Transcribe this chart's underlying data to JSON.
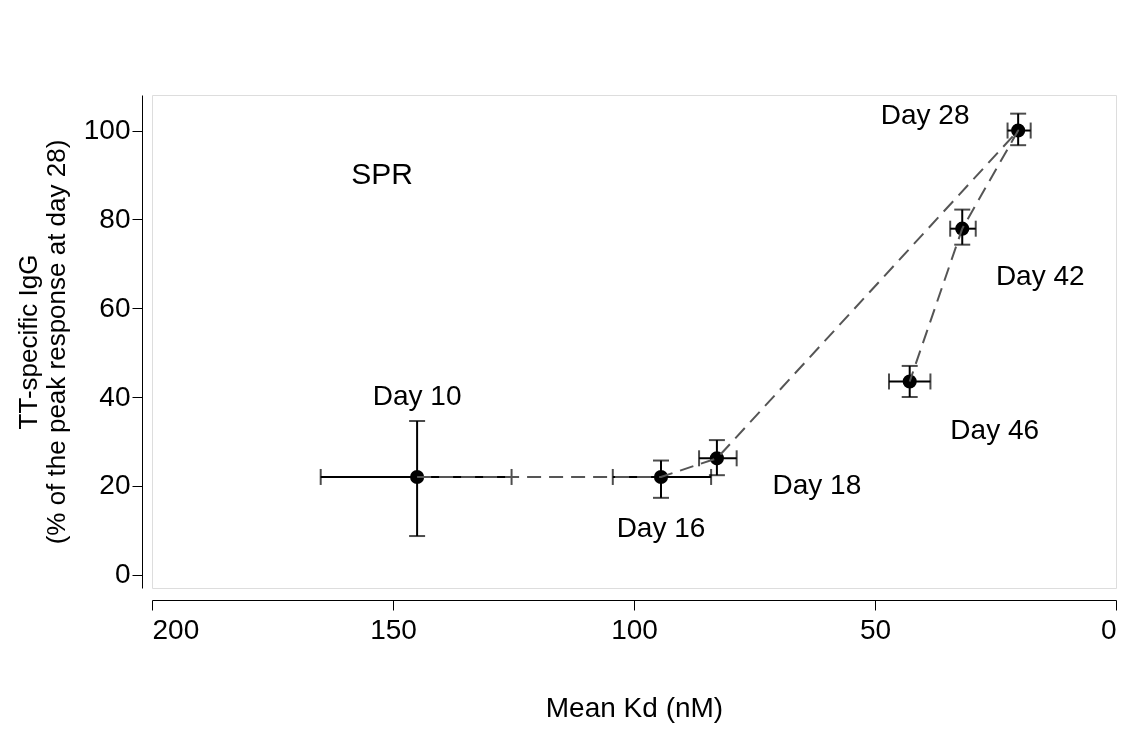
{
  "chart_data": {
    "type": "scatter",
    "xlabel": "Mean Kd (nM)",
    "ylabel": "TT-specific IgG\n(% of the peak response at day 28)",
    "xlim": [
      200,
      0
    ],
    "xticks": [
      200,
      150,
      100,
      50,
      0
    ],
    "ylim": [
      -3,
      108
    ],
    "yticks": [
      0,
      20,
      40,
      60,
      80,
      100
    ],
    "grid": false,
    "series": [
      {
        "color": "#000000",
        "marker": "circle",
        "x": [
          145,
          94.4,
          82.8,
          42.8,
          31.9,
          20.3
        ],
        "values": [
          22,
          22,
          26.2,
          43.5,
          77.9,
          100
        ],
        "errors": [
          [
            8.7,
            34.6
          ],
          [
            17.3,
            25.7
          ],
          [
            22.4,
            30.3
          ],
          [
            40,
            47
          ],
          [
            74.3,
            82.2
          ],
          [
            96.7,
            103.8
          ]
        ],
        "xerrors": [
          [
            125.4,
            165
          ],
          [
            84,
            104.4
          ],
          [
            78.7,
            86.5
          ],
          [
            38.5,
            47.1
          ],
          [
            29.1,
            34.4
          ],
          [
            17.7,
            22.5
          ]
        ]
      },
      {
        "type": "line",
        "color": "#555555",
        "line_style": "dashed",
        "marker": "none",
        "x": [
          145,
          94.4,
          82.8,
          20.3,
          31.9,
          42.8
        ],
        "values": [
          22,
          22,
          26.2,
          100,
          77.9,
          43.5
        ]
      }
    ],
    "annotations": [
      "SPR",
      {
        "text": "Day 10",
        "x": 145,
        "y": 22
      },
      {
        "text": "Day 16",
        "x": 94.4,
        "y": 22
      },
      {
        "text": "Day 18",
        "x": 82.8,
        "y": 26.2
      },
      {
        "text": "Day 46",
        "x": 42.8,
        "y": 43.5
      },
      {
        "text": "Day 42",
        "x": 31.9,
        "y": 77.9
      },
      {
        "text": "Day 28",
        "x": 20.3,
        "y": 100
      }
    ]
  }
}
